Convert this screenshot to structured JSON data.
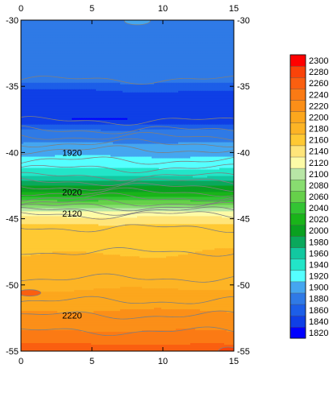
{
  "chart_data": {
    "type": "heatmap",
    "title": "",
    "xlabel": "",
    "ylabel": "",
    "xlim": [
      0,
      15
    ],
    "ylim": [
      -55,
      -30
    ],
    "x_ticks": [
      0,
      5,
      10,
      15
    ],
    "y_ticks": [
      -30,
      -35,
      -40,
      -45,
      -50,
      -55
    ],
    "x_tick_labels": [
      "0",
      "5",
      "10",
      "15"
    ],
    "y_tick_labels": [
      "-30",
      "-35",
      "-40",
      "-45",
      "-50",
      "-55"
    ],
    "grid": false,
    "legend": "right",
    "colorbar": {
      "levels": [
        1820,
        1840,
        1860,
        1880,
        1900,
        1920,
        1940,
        1960,
        1980,
        2000,
        2020,
        2040,
        2060,
        2080,
        2100,
        2120,
        2140,
        2160,
        2180,
        2200,
        2220,
        2240,
        2260,
        2280,
        2300
      ],
      "labels": [
        "1820",
        "1840",
        "1860",
        "1880",
        "1900",
        "1920",
        "1940",
        "1960",
        "1980",
        "2000",
        "2020",
        "2040",
        "2060",
        "2080",
        "2100",
        "2120",
        "2140",
        "2160",
        "2180",
        "2200",
        "2220",
        "2240",
        "2260",
        "2280",
        "2300"
      ],
      "colors": [
        "#0000ff",
        "#0f3fe6",
        "#1c5ee8",
        "#2f7ae6",
        "#45a6f0",
        "#55ffff",
        "#22e5c8",
        "#12c8a0",
        "#0aa85c",
        "#0aa020",
        "#19b419",
        "#33c433",
        "#66d04a",
        "#88dd70",
        "#b8e6a6",
        "#fdfba7",
        "#ffe57a",
        "#ffc933",
        "#fdb425",
        "#fca71d",
        "#fb8f18",
        "#fb7a14",
        "#fa5f10",
        "#fa4309",
        "#ff0000"
      ]
    },
    "profile_y": [
      -30,
      -34.5,
      -35.3,
      -37.5,
      -38.3,
      -38.8,
      -39.3,
      -39.8,
      -40.6,
      -41.2,
      -41.8,
      -42.2,
      -42.6,
      -43,
      -43.4,
      -43.8,
      -44.1,
      -44.4,
      -44.7,
      -45.7,
      -49.5,
      -51.2,
      -53.5,
      -55
    ],
    "profile_values": [
      1890,
      1890,
      1860,
      1840,
      1880,
      1890,
      1900,
      1910,
      1925,
      1940,
      1960,
      1985,
      2005,
      2020,
      2045,
      2070,
      2095,
      2115,
      2135,
      2170,
      2190,
      2210,
      2240,
      2270
    ],
    "contour_labels": [
      {
        "text": "1920",
        "x": 3.6,
        "y": -40.0
      },
      {
        "text": "2020",
        "x": 3.6,
        "y": -43.0
      },
      {
        "text": "2120",
        "x": 3.6,
        "y": -44.6
      },
      {
        "text": "2220",
        "x": 3.6,
        "y": -52.3
      }
    ]
  }
}
